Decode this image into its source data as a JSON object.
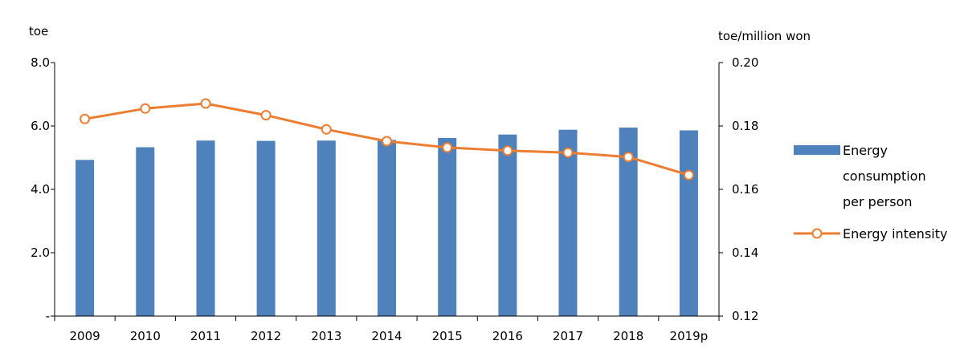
{
  "chart_data": {
    "type": "bar+line",
    "categories": [
      "2009",
      "2010",
      "2011",
      "2012",
      "2013",
      "2014",
      "2015",
      "2016",
      "2017",
      "2018",
      "2019p"
    ],
    "series": [
      {
        "name": "Energy consumption per person",
        "type": "bar",
        "axis": "left",
        "color": "#4f81bd",
        "values": [
          4.93,
          5.33,
          5.54,
          5.53,
          5.54,
          5.56,
          5.62,
          5.73,
          5.88,
          5.95,
          5.86
        ]
      },
      {
        "name": "Energy intensity",
        "type": "line",
        "axis": "right",
        "color": "#ed7d31",
        "values": [
          0.1822,
          0.1855,
          0.1871,
          0.1834,
          0.1789,
          0.1752,
          0.1732,
          0.1722,
          0.1716,
          0.1702,
          0.1645
        ]
      }
    ],
    "y_left": {
      "unit": "toe",
      "ylim": [
        0,
        8
      ],
      "ticks": [
        0,
        2,
        4,
        6,
        8
      ],
      "tick_labels": [
        "-",
        "2.0",
        "4.0",
        "6.0",
        "8.0"
      ]
    },
    "y_right": {
      "unit": "toe/million won",
      "ylim": [
        0.12,
        0.2
      ],
      "ticks": [
        0.12,
        0.14,
        0.16,
        0.18,
        0.2
      ],
      "tick_labels": [
        "0.12",
        "0.14",
        "0.16",
        "0.18",
        "0.20"
      ]
    },
    "legend": {
      "placement": "right",
      "items": [
        {
          "label_lines": [
            "Energy",
            "consumption",
            "per person"
          ],
          "marker": "bar"
        },
        {
          "label_lines": [
            "Energy intensity"
          ],
          "marker": "line-circle"
        }
      ]
    },
    "grid": false
  }
}
